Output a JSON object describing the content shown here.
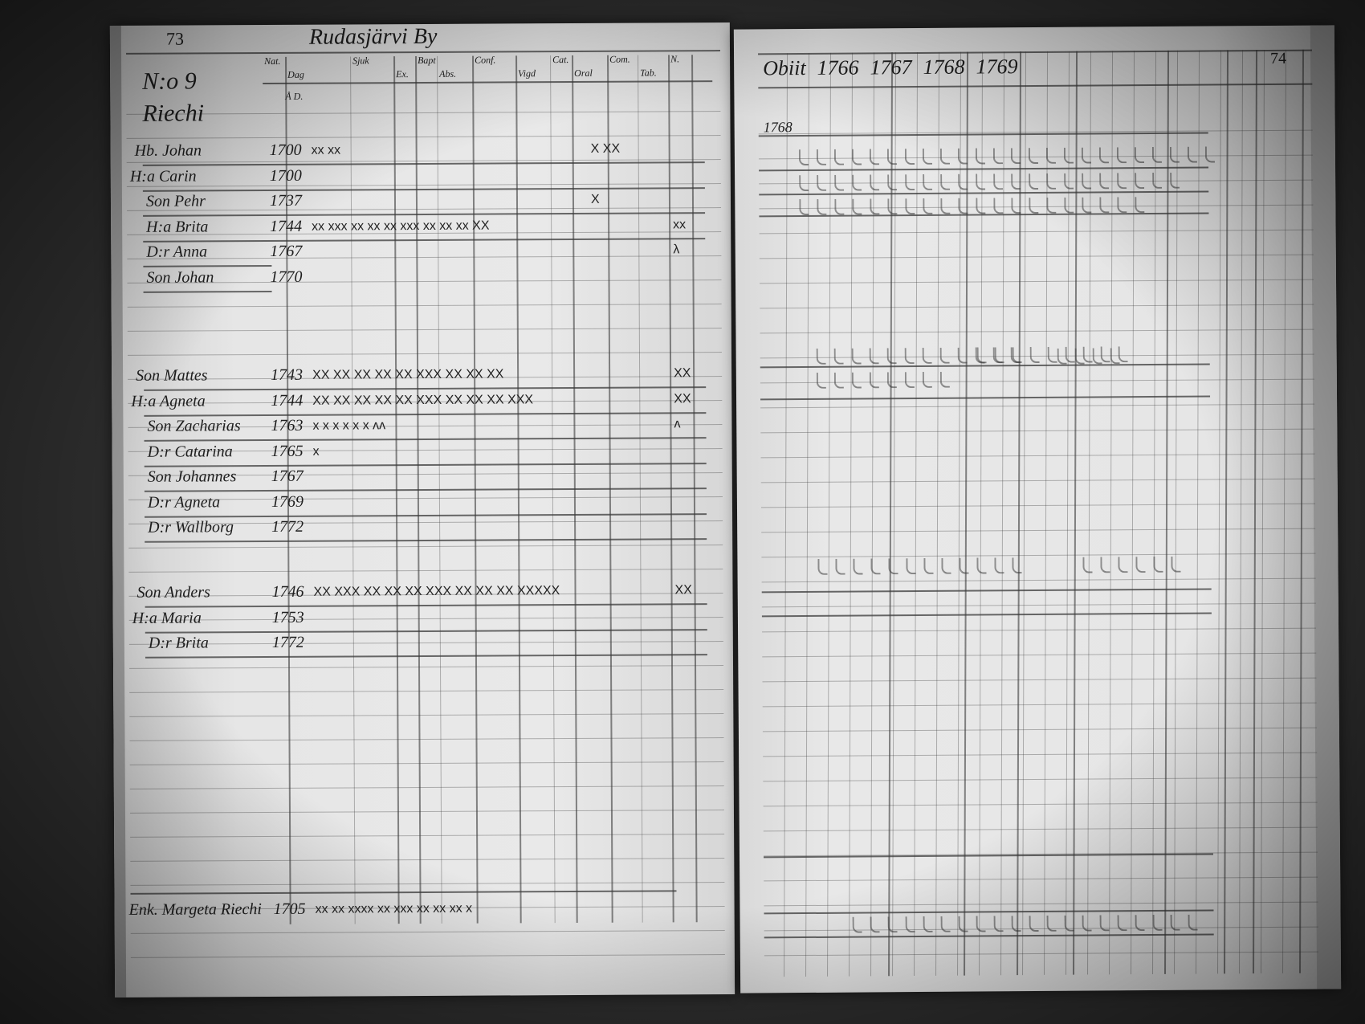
{
  "left_page": {
    "page_number": "73",
    "village_title": "Rudasjärvi By",
    "household_label": "N:o 9 Riechi",
    "subheader": "Å D.",
    "column_headers": [
      "Nat.",
      "Dag",
      "Sjuk",
      "Ex.",
      "Bapt",
      "Abs.",
      "Conf.",
      "Vigd",
      "Cat.",
      "Oral",
      "Com.",
      "Tab.",
      "N."
    ],
    "households": [
      {
        "rows": [
          {
            "name": "Hb. Johan",
            "born": "1700",
            "marks": "xx xx",
            "right_marks": "X      XX"
          },
          {
            "name": "H:a Carin",
            "born": "1700",
            "marks": "",
            "right_marks": ""
          },
          {
            "name": "Son Pehr",
            "born": "1737",
            "marks": "",
            "right_marks": "X"
          },
          {
            "name": "H:a Brita",
            "born": "1744",
            "marks": "xx xxx  xx  xx  xx  xxx  xx  xx  xx  XX",
            "right_marks": "xx"
          },
          {
            "name": "D:r Anna",
            "born": "1767",
            "marks": "",
            "right_marks": "λ"
          },
          {
            "name": "Son Johan",
            "born": "1770",
            "marks": "",
            "right_marks": ""
          }
        ]
      },
      {
        "rows": [
          {
            "name": "Son Mattes",
            "born": "1743",
            "marks": "XX XX  XX XX XX  XXX XX XX XX",
            "right_marks": "XX"
          },
          {
            "name": "H:a Agneta",
            "born": "1744",
            "marks": "XX XX  XX XX XX  XXX XX XX XX  XXX",
            "right_marks": "XX"
          },
          {
            "name": "Son Zacharias",
            "born": "1763",
            "marks": "x  x   x  x  x       x   ʌʌ",
            "right_marks": "ʌ"
          },
          {
            "name": "D:r Catarina",
            "born": "1765",
            "marks": "x",
            "right_marks": ""
          },
          {
            "name": "Son Johannes",
            "born": "1767",
            "marks": "",
            "right_marks": ""
          },
          {
            "name": "D:r Agneta",
            "born": "1769",
            "marks": "",
            "right_marks": ""
          },
          {
            "name": "D:r Wallborg",
            "born": "1772",
            "marks": "",
            "right_marks": ""
          }
        ]
      },
      {
        "rows": [
          {
            "name": "Son Anders",
            "born": "1746",
            "marks": "XX XXX XX XX XX XXX XX XX XX  XXXXX",
            "right_marks": "XX"
          },
          {
            "name": "H:a Maria",
            "born": "1753",
            "marks": "",
            "right_marks": ""
          },
          {
            "name": "D:r Brita",
            "born": "1772",
            "marks": "",
            "right_marks": ""
          }
        ]
      }
    ],
    "footer_row": {
      "name": "Enk. Margeta Riechi",
      "born": "1705",
      "marks": "xx xx   xxxx xx xxx xx xx  xx x"
    }
  },
  "right_page": {
    "page_number": "74",
    "header": [
      "Obiit",
      "1766",
      "1767",
      "1768",
      "1769"
    ],
    "first_row_label": "1768"
  }
}
